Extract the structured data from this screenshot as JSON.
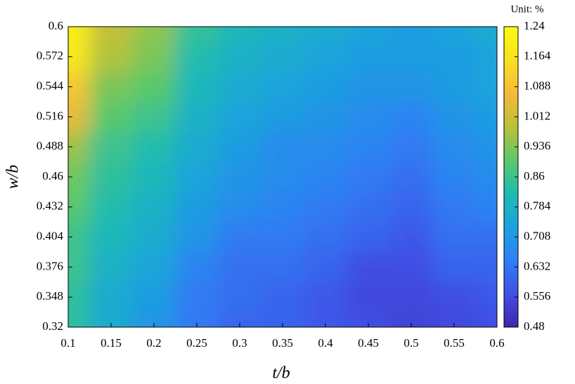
{
  "chart_data": {
    "type": "heatmap",
    "xlabel": "t/b",
    "ylabel": "w/b",
    "colorbar_label": "Unit: %",
    "x": [
      0.1,
      0.15,
      0.2,
      0.25,
      0.3,
      0.35,
      0.4,
      0.45,
      0.5,
      0.55,
      0.6
    ],
    "y": [
      0.32,
      0.348,
      0.376,
      0.404,
      0.432,
      0.46,
      0.488,
      0.516,
      0.544,
      0.572,
      0.6
    ],
    "z": [
      [
        0.84,
        0.76,
        0.7,
        0.64,
        0.6,
        0.6,
        0.58,
        0.56,
        0.54,
        0.55,
        0.56
      ],
      [
        0.84,
        0.76,
        0.72,
        0.64,
        0.62,
        0.6,
        0.58,
        0.55,
        0.55,
        0.56,
        0.58
      ],
      [
        0.86,
        0.78,
        0.74,
        0.66,
        0.62,
        0.62,
        0.6,
        0.56,
        0.56,
        0.6,
        0.6
      ],
      [
        0.86,
        0.8,
        0.76,
        0.7,
        0.64,
        0.64,
        0.62,
        0.6,
        0.58,
        0.62,
        0.62
      ],
      [
        0.9,
        0.82,
        0.78,
        0.72,
        0.68,
        0.66,
        0.64,
        0.62,
        0.6,
        0.64,
        0.66
      ],
      [
        0.92,
        0.84,
        0.8,
        0.74,
        0.7,
        0.68,
        0.66,
        0.64,
        0.62,
        0.66,
        0.68
      ],
      [
        0.96,
        0.86,
        0.82,
        0.76,
        0.72,
        0.68,
        0.68,
        0.66,
        0.64,
        0.68,
        0.7
      ],
      [
        1.05,
        0.9,
        0.86,
        0.78,
        0.74,
        0.72,
        0.7,
        0.68,
        0.66,
        0.7,
        0.72
      ],
      [
        1.1,
        0.93,
        0.9,
        0.8,
        0.76,
        0.74,
        0.72,
        0.7,
        0.7,
        0.72,
        0.74
      ],
      [
        1.18,
        0.98,
        0.93,
        0.82,
        0.78,
        0.76,
        0.74,
        0.72,
        0.72,
        0.72,
        0.74
      ],
      [
        1.2,
        1.0,
        0.95,
        0.85,
        0.8,
        0.78,
        0.76,
        0.74,
        0.72,
        0.74,
        0.76
      ]
    ],
    "xlim": [
      0.1,
      0.6
    ],
    "ylim": [
      0.32,
      0.6
    ],
    "xticks": [
      0.1,
      0.15,
      0.2,
      0.25,
      0.3,
      0.35,
      0.4,
      0.45,
      0.5,
      0.55,
      0.6
    ],
    "yticks": [
      0.32,
      0.348,
      0.376,
      0.404,
      0.432,
      0.46,
      0.488,
      0.516,
      0.544,
      0.572,
      0.6
    ],
    "clim": [
      0.48,
      1.24
    ],
    "cticks": [
      0.48,
      0.556,
      0.632,
      0.708,
      0.784,
      0.86,
      0.936,
      1.012,
      1.088,
      1.164,
      1.24
    ],
    "colormap": [
      "#3e26a8",
      "#4150e6",
      "#2f7ff5",
      "#1ba2dd",
      "#1fbcb1",
      "#5bc86a",
      "#b9c13a",
      "#f5b93a",
      "#f9e11f",
      "#f9fb0e"
    ]
  }
}
